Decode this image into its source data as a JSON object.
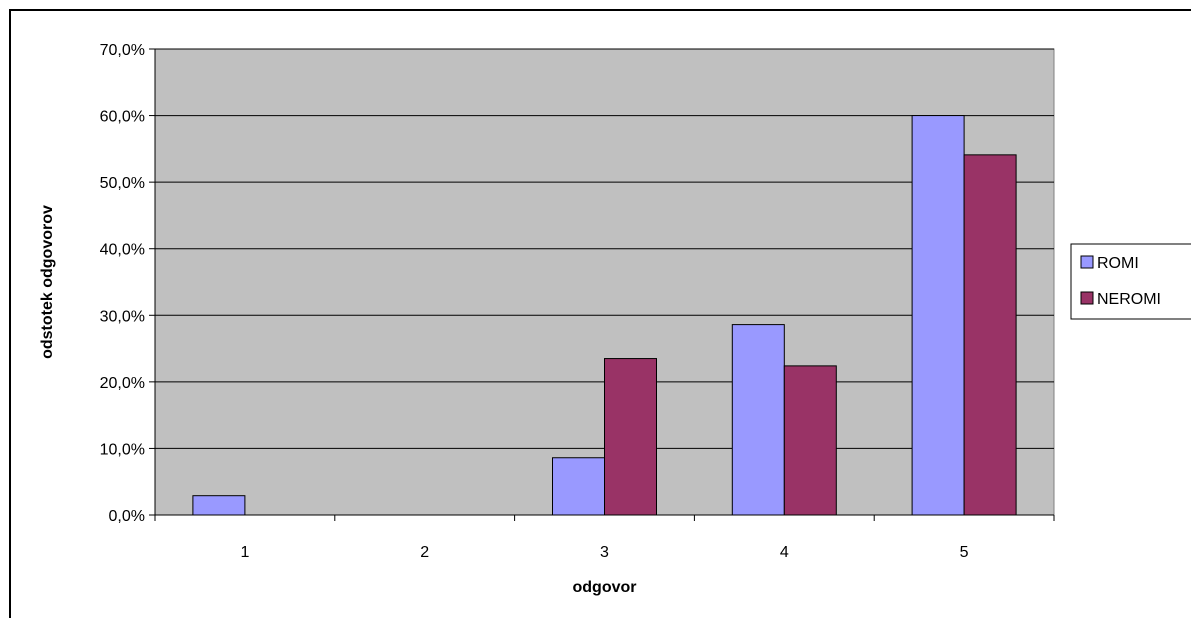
{
  "chart_data": {
    "type": "bar",
    "title": "",
    "xlabel": "odgovor",
    "ylabel": "odstotek odgovorov",
    "categories": [
      "1",
      "2",
      "3",
      "4",
      "5"
    ],
    "series": [
      {
        "name": "ROMI",
        "values": [
          2.9,
          0,
          8.6,
          28.6,
          60.0
        ],
        "color": "#9999ff"
      },
      {
        "name": "NEROMI",
        "values": [
          0,
          0,
          23.5,
          22.4,
          54.1
        ],
        "color": "#993366"
      }
    ],
    "ylim": [
      0,
      70
    ],
    "yticks": [
      0,
      10,
      20,
      30,
      40,
      50,
      60,
      70
    ],
    "ytick_labels": [
      "0,0%",
      "10,0%",
      "20,0%",
      "30,0%",
      "40,0%",
      "50,0%",
      "60,0%",
      "70,0%"
    ],
    "grid": true,
    "plot_background": "#c0c0c0",
    "legend_position": "right"
  }
}
